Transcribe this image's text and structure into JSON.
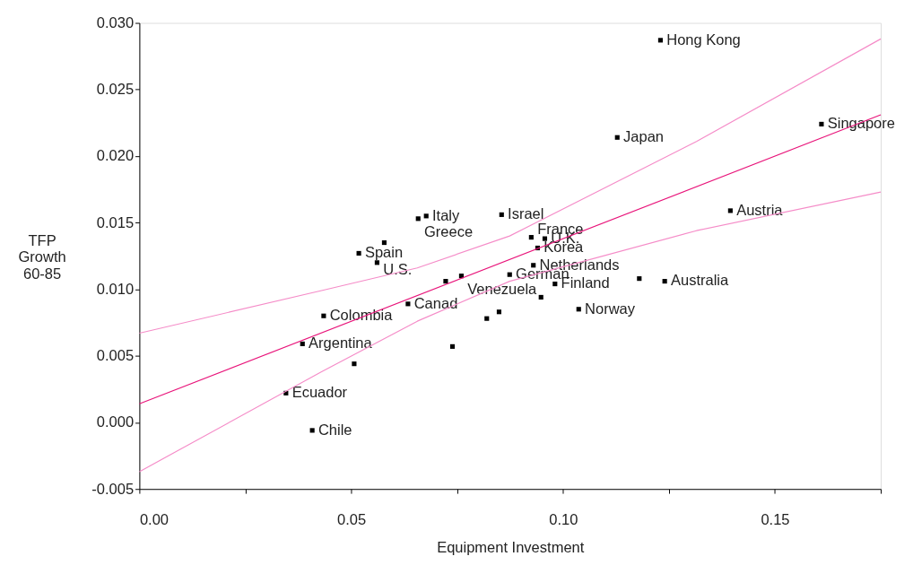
{
  "chart_data": {
    "type": "scatter",
    "xlabel": "Equipment Investment",
    "ylabel": "TFP Growth 60-85",
    "xlim": [
      0,
      0.175
    ],
    "ylim": [
      -0.005,
      0.03
    ],
    "xticks": [
      {
        "value": 0,
        "label": "0.00"
      },
      {
        "value": 0.025,
        "label": null
      },
      {
        "value": 0.05,
        "label": "0.05"
      },
      {
        "value": 0.075,
        "label": null
      },
      {
        "value": 0.1,
        "label": "0.10"
      },
      {
        "value": 0.125,
        "label": null
      },
      {
        "value": 0.15,
        "label": "0.15"
      },
      {
        "value": 0.175,
        "label": null
      }
    ],
    "yticks": [
      {
        "value": -0.005,
        "label": "-0.005"
      },
      {
        "value": 0,
        "label": "0.000"
      },
      {
        "value": 0.005,
        "label": "0.005"
      },
      {
        "value": 0.01,
        "label": "0.010"
      },
      {
        "value": 0.015,
        "label": "0.015"
      },
      {
        "value": 0.02,
        "label": "0.020"
      },
      {
        "value": 0.025,
        "label": "0.025"
      },
      {
        "value": 0.03,
        "label": "0.030"
      }
    ],
    "grid": false,
    "series": [
      {
        "marker": "square",
        "color": "#000000",
        "x": [
          0.123,
          0.1128,
          0.161,
          0.1395,
          0.124,
          0.118,
          0.1037,
          0.0981,
          0.0948,
          0.093,
          0.094,
          0.0925,
          0.0957,
          0.0855,
          0.0874,
          0.076,
          0.0723,
          0.0634,
          0.082,
          0.0849,
          0.0739,
          0.0677,
          0.0658,
          0.0518,
          0.0561,
          0.0578,
          0.0435,
          0.0385,
          0.0507,
          0.0346,
          0.0408
        ],
        "values": [
          0.0287,
          0.0214,
          0.0224,
          0.0159,
          0.0106,
          0.0108,
          0.0085,
          0.0104,
          0.0094,
          0.0118,
          0.0131,
          0.0139,
          0.0138,
          0.0156,
          0.0111,
          0.011,
          0.0106,
          0.0089,
          0.0078,
          0.0083,
          0.0057,
          0.0155,
          0.0153,
          0.0127,
          0.012,
          0.0135,
          0.008,
          0.0059,
          0.0044,
          0.0022,
          -0.0006
        ],
        "value_labels": [
          "Hong Kong",
          "Japan",
          "Singapore",
          "Austria",
          "Australia",
          null,
          "Norway",
          "Finland",
          null,
          "Netherlands",
          "Korea",
          "France",
          "U.K.",
          "Israel",
          "German",
          "Venezuela",
          null,
          "Canad",
          null,
          null,
          null,
          "Italy",
          "Greece",
          "Spain",
          "U.S.",
          null,
          "Colombia",
          "Argentina",
          null,
          "Ecuador",
          "Chile"
        ]
      },
      {
        "type": "line",
        "marker": "none",
        "color": "#e8147a",
        "line_style": "solid",
        "x": [
          0,
          0.175
        ],
        "values": [
          0.0014,
          0.0231
        ]
      },
      {
        "type": "line",
        "marker": "none",
        "color": "#f58cc8",
        "line_style": "solid",
        "x": [
          0,
          0.043,
          0.0656,
          0.0874,
          0.1315,
          0.175
        ],
        "values": [
          0.0067,
          0.0099,
          0.0116,
          0.014,
          0.0211,
          0.0288
        ]
      },
      {
        "type": "line",
        "marker": "none",
        "color": "#f58cc8",
        "line_style": "solid",
        "x": [
          0,
          0.043,
          0.0656,
          0.0874,
          0.1315,
          0.175
        ],
        "values": [
          -0.0037,
          0.0038,
          0.0076,
          0.0106,
          0.0144,
          0.0173
        ]
      }
    ]
  }
}
